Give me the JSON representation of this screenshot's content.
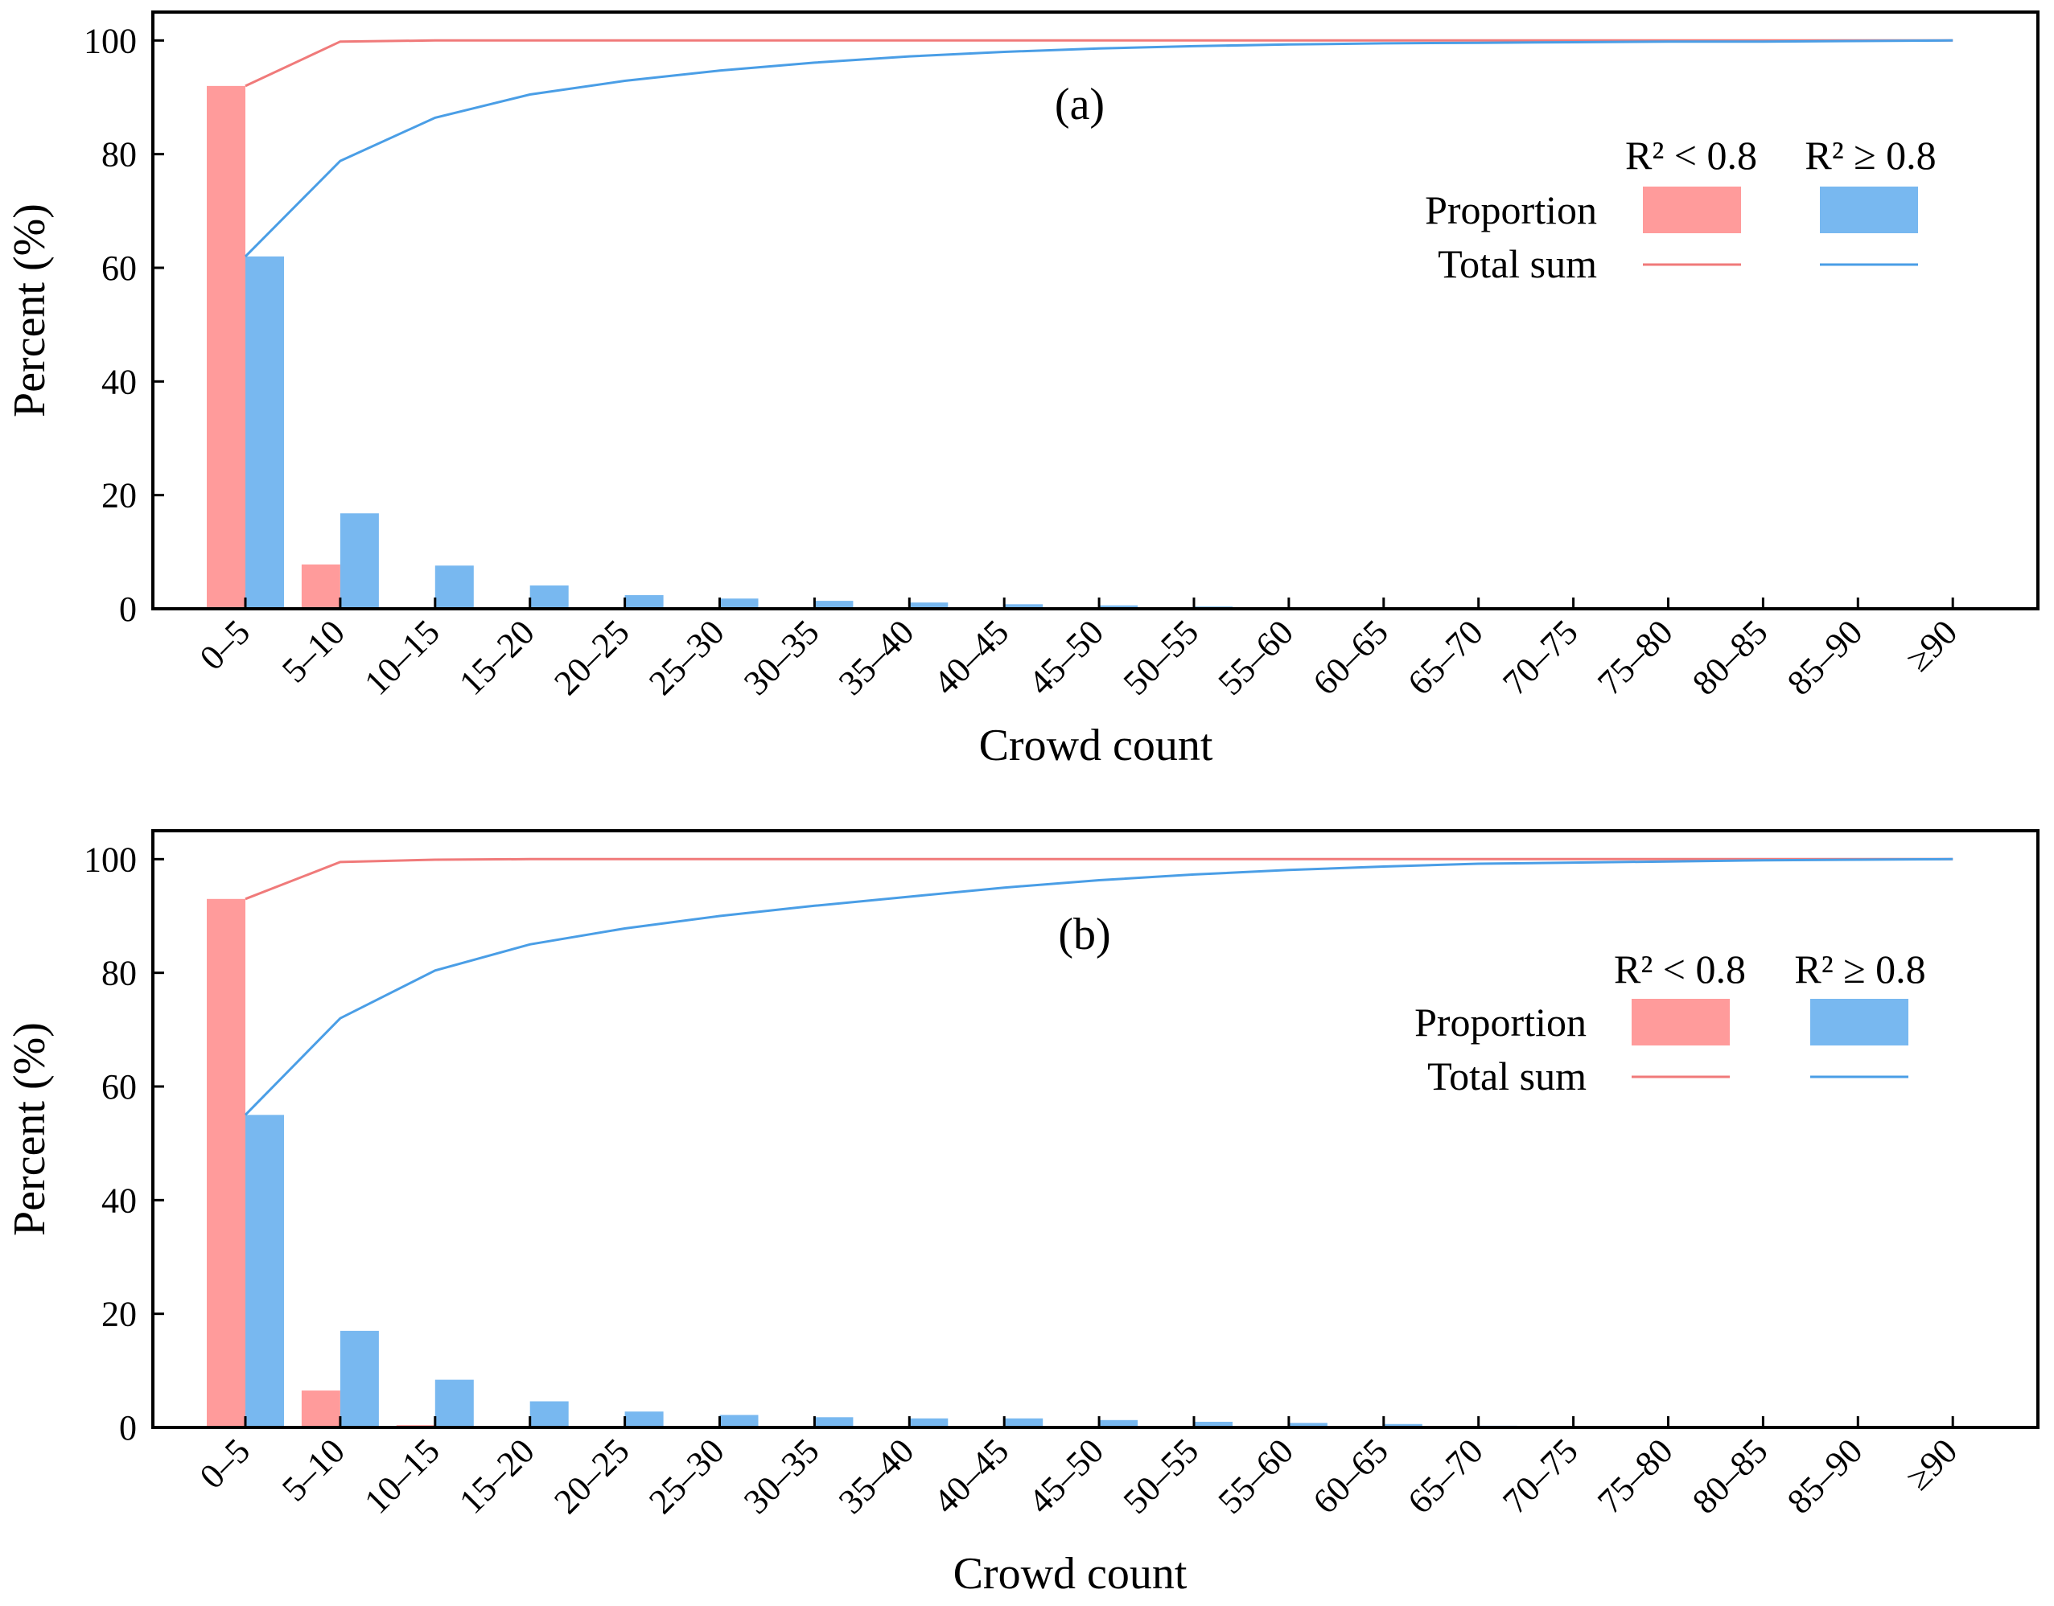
{
  "figure": {
    "panels": [
      "(a)",
      "(b)"
    ]
  },
  "colors": {
    "low": "#FF9B9B",
    "high": "#78B8F0",
    "low_line": "#F07A7A",
    "high_line": "#4A9EE6"
  },
  "legend": {
    "col_low": "R² < 0.8",
    "col_high": "R² ≥ 0.8",
    "row_proportion": "Proportion",
    "row_total": "Total sum"
  },
  "chart_data": [
    {
      "type": "bar",
      "title": "(a)",
      "xlabel": "Crowd count",
      "ylabel": "Percent (%)",
      "ylim": [
        0,
        105
      ],
      "yticks": [
        0,
        20,
        40,
        60,
        80,
        100
      ],
      "grid": false,
      "legend_position": "top-right",
      "categories": [
        "0–5",
        "5–10",
        "10–15",
        "15–20",
        "20–25",
        "25–30",
        "30–35",
        "35–40",
        "40–45",
        "45–50",
        "50–55",
        "55–60",
        "60–65",
        "65–70",
        "70–75",
        "75–80",
        "80–85",
        "85–90",
        "≥90"
      ],
      "series": [
        {
          "name": "Proportion R² < 0.8",
          "kind": "bar",
          "color_key": "low",
          "values": [
            92.0,
            7.8,
            0.2,
            0,
            0,
            0,
            0,
            0,
            0,
            0,
            0,
            0,
            0,
            0,
            0,
            0,
            0,
            0,
            0
          ]
        },
        {
          "name": "Proportion R² ≥ 0.8",
          "kind": "bar",
          "color_key": "high",
          "values": [
            62.0,
            16.8,
            7.6,
            4.1,
            2.4,
            1.8,
            1.4,
            1.1,
            0.8,
            0.6,
            0.4,
            0.2,
            0.1,
            0.1,
            0.05,
            0.05,
            0,
            0,
            0.3
          ]
        },
        {
          "name": "Total sum R² < 0.8",
          "kind": "line",
          "color_key": "low_line",
          "values": [
            92.0,
            99.8,
            100,
            100,
            100,
            100,
            100,
            100,
            100,
            100,
            100,
            100,
            100,
            100,
            100,
            100,
            100,
            100,
            100
          ]
        },
        {
          "name": "Total sum R² ≥ 0.8",
          "kind": "line",
          "color_key": "high_line",
          "values": [
            62.0,
            78.8,
            86.4,
            90.5,
            92.9,
            94.7,
            96.1,
            97.2,
            98.0,
            98.6,
            99.0,
            99.3,
            99.5,
            99.6,
            99.7,
            99.8,
            99.8,
            99.9,
            100
          ]
        }
      ]
    },
    {
      "type": "bar",
      "title": "(b)",
      "xlabel": "Crowd count",
      "ylabel": "Percent (%)",
      "ylim": [
        0,
        105
      ],
      "yticks": [
        0,
        20,
        40,
        60,
        80,
        100
      ],
      "grid": false,
      "legend_position": "top-right",
      "categories": [
        "0–5",
        "5–10",
        "10–15",
        "15–20",
        "20–25",
        "25–30",
        "30–35",
        "35–40",
        "40–45",
        "45–50",
        "50–55",
        "55–60",
        "60–65",
        "65–70",
        "70–75",
        "75–80",
        "80–85",
        "85–90",
        "≥90"
      ],
      "series": [
        {
          "name": "Proportion R² < 0.8",
          "kind": "bar",
          "color_key": "low",
          "values": [
            93.0,
            6.5,
            0.4,
            0.1,
            0,
            0,
            0,
            0,
            0,
            0,
            0,
            0,
            0,
            0,
            0,
            0,
            0,
            0,
            0
          ]
        },
        {
          "name": "Proportion R² ≥ 0.8",
          "kind": "bar",
          "color_key": "high",
          "values": [
            55.0,
            17.0,
            8.4,
            4.6,
            2.8,
            2.2,
            1.8,
            1.6,
            1.6,
            1.3,
            1.0,
            0.8,
            0.6,
            0.3,
            0.2,
            0.1,
            0.05,
            0.05,
            0.2
          ]
        },
        {
          "name": "Total sum R² < 0.8",
          "kind": "line",
          "color_key": "low_line",
          "values": [
            93.0,
            99.5,
            99.9,
            100,
            100,
            100,
            100,
            100,
            100,
            100,
            100,
            100,
            100,
            100,
            100,
            100,
            100,
            100,
            100
          ]
        },
        {
          "name": "Total sum R² ≥ 0.8",
          "kind": "line",
          "color_key": "high_line",
          "values": [
            55.0,
            72.0,
            80.4,
            85.0,
            87.8,
            90.0,
            91.8,
            93.4,
            95.0,
            96.3,
            97.3,
            98.1,
            98.7,
            99.2,
            99.4,
            99.6,
            99.8,
            99.9,
            100
          ]
        }
      ]
    }
  ]
}
